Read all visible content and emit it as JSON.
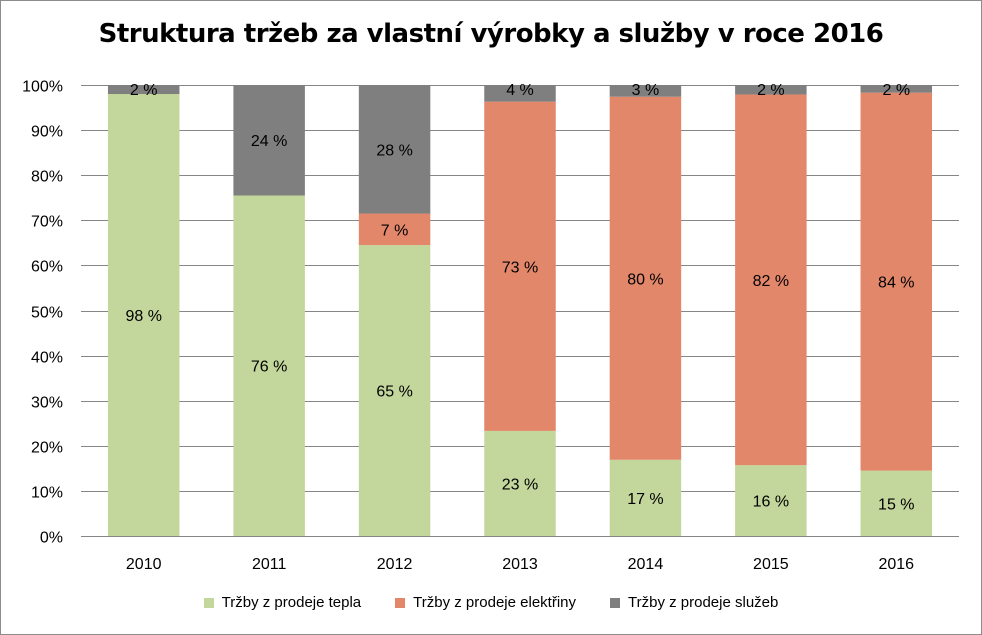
{
  "chart_data": {
    "type": "bar",
    "stacked": true,
    "title": "Struktura tržeb za vlastní výrobky a služby v roce 2016",
    "xlabel": "",
    "ylabel": "",
    "ylim": [
      0,
      100
    ],
    "yticks": [
      "0%",
      "10%",
      "20%",
      "30%",
      "40%",
      "50%",
      "60%",
      "70%",
      "80%",
      "90%",
      "100%"
    ],
    "grid": true,
    "legend_position": "bottom",
    "categories": [
      "2010",
      "2011",
      "2012",
      "2013",
      "2014",
      "2015",
      "2016"
    ],
    "series": [
      {
        "name": "Tržby z prodeje tepla",
        "color": "#c3d69b",
        "values": [
          98,
          75.5,
          64.5,
          23.3,
          16.9,
          15.7,
          14.5
        ],
        "labels": [
          "98 %",
          "76 %",
          "65 %",
          "23 %",
          "17 %",
          "16 %",
          "15 %"
        ]
      },
      {
        "name": "Tržby z prodeje elektřiny",
        "color": "#e3876a",
        "values": [
          0,
          0,
          7,
          73,
          80.5,
          82.2,
          83.8
        ],
        "labels": [
          "",
          "",
          "7 %",
          "73 %",
          "80 %",
          "82 %",
          "84 %"
        ]
      },
      {
        "name": "Tržby z prodeje služeb",
        "color": "#7f7f7f",
        "values": [
          2,
          24.5,
          28.5,
          3.7,
          2.6,
          2.1,
          1.7
        ],
        "labels": [
          "2 %",
          "24 %",
          "28 %",
          "4 %",
          "3 %",
          "2 %",
          "2 %"
        ]
      }
    ]
  }
}
